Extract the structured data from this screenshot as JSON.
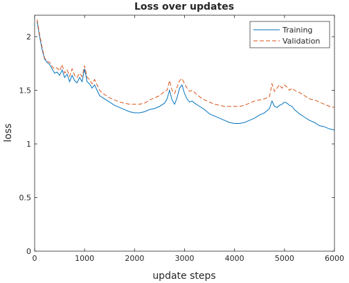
{
  "chart_data": {
    "type": "line",
    "title": "Loss over updates",
    "xlabel": "update steps",
    "ylabel": "loss",
    "xlim": [
      0,
      6000
    ],
    "ylim": [
      0,
      2.2
    ],
    "xticks": [
      0,
      1000,
      2000,
      3000,
      4000,
      5000,
      6000
    ],
    "yticks": [
      0,
      0.5,
      1,
      1.5,
      2
    ],
    "xtick_labels": [
      "0",
      "1000",
      "2000",
      "3000",
      "4000",
      "5000",
      "6000"
    ],
    "ytick_labels": [
      "0",
      "0.5",
      "1",
      "1.5",
      "2"
    ],
    "grid": false,
    "legend_position": "top-right",
    "series": [
      {
        "name": "Training",
        "color": "#0072bd",
        "style": "solid",
        "x": [
          50,
          100,
          150,
          200,
          250,
          300,
          350,
          400,
          450,
          500,
          550,
          600,
          650,
          700,
          750,
          800,
          850,
          900,
          950,
          1000,
          1050,
          1100,
          1150,
          1200,
          1250,
          1300,
          1400,
          1500,
          1600,
          1700,
          1800,
          1900,
          2000,
          2100,
          2200,
          2300,
          2400,
          2500,
          2600,
          2650,
          2700,
          2750,
          2800,
          2850,
          2900,
          2950,
          3000,
          3050,
          3100,
          3150,
          3200,
          3300,
          3400,
          3500,
          3600,
          3700,
          3800,
          3900,
          4000,
          4100,
          4200,
          4300,
          4400,
          4500,
          4600,
          4700,
          4750,
          4800,
          4850,
          4900,
          4950,
          5000,
          5050,
          5100,
          5150,
          5200,
          5300,
          5400,
          5500,
          5600,
          5700,
          5800,
          5900,
          6000
        ],
        "y": [
          2.14,
          2.0,
          1.88,
          1.79,
          1.76,
          1.74,
          1.7,
          1.66,
          1.67,
          1.64,
          1.69,
          1.62,
          1.65,
          1.58,
          1.64,
          1.59,
          1.57,
          1.62,
          1.58,
          1.7,
          1.58,
          1.56,
          1.52,
          1.55,
          1.5,
          1.45,
          1.42,
          1.39,
          1.36,
          1.34,
          1.32,
          1.3,
          1.29,
          1.29,
          1.3,
          1.32,
          1.33,
          1.35,
          1.38,
          1.42,
          1.5,
          1.41,
          1.37,
          1.43,
          1.52,
          1.55,
          1.47,
          1.42,
          1.39,
          1.4,
          1.38,
          1.35,
          1.32,
          1.28,
          1.26,
          1.24,
          1.22,
          1.2,
          1.19,
          1.19,
          1.2,
          1.22,
          1.24,
          1.27,
          1.29,
          1.33,
          1.4,
          1.35,
          1.34,
          1.36,
          1.37,
          1.39,
          1.38,
          1.36,
          1.35,
          1.32,
          1.28,
          1.25,
          1.22,
          1.2,
          1.17,
          1.16,
          1.14,
          1.13
        ]
      },
      {
        "name": "Validation",
        "color": "#d95319",
        "style": "dashed",
        "x": [
          50,
          100,
          150,
          200,
          250,
          300,
          350,
          400,
          450,
          500,
          550,
          600,
          650,
          700,
          750,
          800,
          850,
          900,
          950,
          1000,
          1050,
          1100,
          1150,
          1200,
          1250,
          1300,
          1400,
          1500,
          1600,
          1700,
          1800,
          1900,
          2000,
          2100,
          2200,
          2300,
          2400,
          2500,
          2600,
          2650,
          2700,
          2750,
          2800,
          2850,
          2900,
          2950,
          3000,
          3050,
          3100,
          3150,
          3200,
          3300,
          3400,
          3500,
          3600,
          3700,
          3800,
          3900,
          4000,
          4100,
          4200,
          4300,
          4400,
          4500,
          4600,
          4700,
          4750,
          4800,
          4850,
          4900,
          4950,
          5000,
          5050,
          5100,
          5150,
          5200,
          5300,
          5400,
          5500,
          5600,
          5700,
          5800,
          5900,
          6000
        ],
        "y": [
          2.16,
          2.02,
          1.9,
          1.8,
          1.77,
          1.76,
          1.72,
          1.7,
          1.71,
          1.68,
          1.74,
          1.66,
          1.69,
          1.63,
          1.7,
          1.64,
          1.62,
          1.66,
          1.63,
          1.73,
          1.62,
          1.6,
          1.56,
          1.6,
          1.55,
          1.5,
          1.46,
          1.43,
          1.41,
          1.39,
          1.38,
          1.37,
          1.37,
          1.37,
          1.38,
          1.41,
          1.43,
          1.45,
          1.49,
          1.5,
          1.59,
          1.5,
          1.47,
          1.53,
          1.59,
          1.61,
          1.56,
          1.52,
          1.49,
          1.5,
          1.48,
          1.44,
          1.41,
          1.39,
          1.37,
          1.36,
          1.35,
          1.35,
          1.35,
          1.35,
          1.36,
          1.38,
          1.4,
          1.41,
          1.42,
          1.44,
          1.56,
          1.49,
          1.52,
          1.55,
          1.52,
          1.55,
          1.53,
          1.5,
          1.52,
          1.5,
          1.48,
          1.45,
          1.42,
          1.41,
          1.39,
          1.37,
          1.35,
          1.34
        ]
      }
    ]
  }
}
